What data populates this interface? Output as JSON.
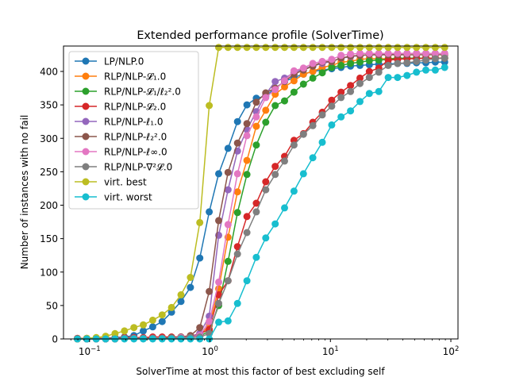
{
  "chart_data": {
    "type": "line",
    "title": "Extended performance profile (SolverTime)",
    "xlabel": "SolverTime at most this factor of best excluding self",
    "ylabel": "Number of instances with no fail",
    "xscale": "log",
    "xlim": [
      0.0608,
      114.6
    ],
    "ylim": [
      0,
      438
    ],
    "x_ticks": [
      {
        "value": 0.1,
        "base": "10",
        "exp": "−1"
      },
      {
        "value": 1,
        "base": "10",
        "exp": "0"
      },
      {
        "value": 10,
        "base": "10",
        "exp": "1"
      },
      {
        "value": 100,
        "base": "10",
        "exp": "2"
      }
    ],
    "y_ticks": [
      0,
      50,
      100,
      150,
      200,
      250,
      300,
      350,
      400
    ],
    "grid": false,
    "legend_position": "upper-left",
    "x_log_start": -1.101,
    "x_log_step": 0.0782,
    "n_points": 40,
    "series": [
      {
        "name": "LP/NLP.0",
        "color": "#1f77b4",
        "values": [
          0,
          0,
          1,
          1,
          2,
          3,
          5,
          12,
          18,
          26,
          40,
          56,
          77,
          121,
          190,
          247,
          285,
          325,
          350,
          360,
          363,
          375,
          385,
          391,
          396,
          400,
          402,
          404,
          406,
          408,
          409,
          410,
          411,
          411,
          412,
          412,
          413,
          413,
          414,
          414
        ]
      },
      {
        "name": "RLP/NLP-𝓛₁.0",
        "color": "#ff7f0e",
        "values": [
          0,
          0,
          0,
          0,
          0,
          1,
          1,
          1,
          1,
          1,
          1,
          2,
          3,
          6,
          20,
          75,
          152,
          220,
          267,
          318,
          342,
          366,
          377,
          386,
          396,
          400,
          406,
          409,
          414,
          415,
          418,
          419,
          419,
          419,
          420,
          420,
          420,
          420,
          420,
          420
        ]
      },
      {
        "name": "RLP/NLP-𝓛₁/ℓ₂².0",
        "color": "#2ca02c",
        "values": [
          0,
          0,
          0,
          0,
          0,
          1,
          1,
          1,
          1,
          1,
          1,
          2,
          2,
          4,
          12,
          50,
          116,
          189,
          246,
          290,
          324,
          349,
          356,
          369,
          381,
          390,
          398,
          406,
          409,
          412,
          414,
          416,
          417,
          418,
          420,
          420,
          420,
          420,
          420,
          420
        ]
      },
      {
        "name": "RLP/NLP-𝓛₂.0",
        "color": "#d62728",
        "values": [
          1,
          1,
          1,
          1,
          1,
          2,
          2,
          2,
          3,
          3,
          3,
          3,
          4,
          8,
          14,
          66,
          87,
          138,
          183,
          203,
          235,
          258,
          273,
          297,
          307,
          324,
          339,
          357,
          369,
          379,
          390,
          400,
          405,
          417,
          418,
          419,
          419,
          420,
          420,
          420
        ]
      },
      {
        "name": "RLP/NLP-ℓ₁.0",
        "color": "#9467bd",
        "values": [
          0,
          0,
          0,
          0,
          0,
          1,
          1,
          1,
          1,
          1,
          1,
          2,
          3,
          8,
          34,
          155,
          223,
          281,
          313,
          340,
          366,
          385,
          390,
          398,
          404,
          408,
          412,
          415,
          420,
          422,
          424,
          425,
          425,
          426,
          426,
          427,
          427,
          427,
          427,
          427
        ]
      },
      {
        "name": "RLP/NLP-ℓ₂².0",
        "color": "#8c564b",
        "values": [
          0,
          0,
          0,
          0,
          0,
          1,
          1,
          1,
          1,
          1,
          2,
          3,
          5,
          17,
          71,
          177,
          249,
          293,
          322,
          354,
          368,
          375,
          385,
          396,
          402,
          408,
          414,
          415,
          420,
          423,
          424,
          425,
          425,
          425,
          425,
          425,
          425,
          425,
          425,
          425
        ]
      },
      {
        "name": "RLP/NLP-ℓ∞.0",
        "color": "#e377c2",
        "values": [
          0,
          0,
          0,
          0,
          0,
          1,
          1,
          1,
          1,
          1,
          1,
          2,
          2,
          5,
          26,
          85,
          171,
          247,
          304,
          332,
          361,
          373,
          386,
          401,
          405,
          412,
          415,
          418,
          424,
          426,
          427,
          427,
          427,
          427,
          427,
          427,
          427,
          427,
          427,
          427
        ]
      },
      {
        "name": "RLP/NLP-∇²𝓛.0",
        "color": "#7f7f7f",
        "values": [
          0,
          0,
          0,
          0,
          0,
          1,
          1,
          1,
          1,
          1,
          1,
          1,
          2,
          3,
          8,
          53,
          87,
          127,
          159,
          190,
          223,
          246,
          266,
          290,
          306,
          319,
          335,
          348,
          361,
          370,
          382,
          391,
          399,
          409,
          412,
          413,
          415,
          417,
          419,
          420
        ]
      },
      {
        "name": "virt. best",
        "color": "#bcbd22",
        "values": [
          0,
          1,
          2,
          4,
          8,
          12,
          17,
          21,
          28,
          36,
          47,
          66,
          92,
          174,
          349,
          436,
          436,
          436,
          436,
          436,
          436,
          436,
          436,
          436,
          436,
          436,
          436,
          436,
          436,
          436,
          436,
          436,
          436,
          436,
          436,
          436,
          436,
          436,
          436,
          436
        ]
      },
      {
        "name": "virt. worst",
        "color": "#17becf",
        "values": [
          0,
          0,
          0,
          0,
          0,
          0,
          0,
          0,
          0,
          0,
          0,
          0,
          0,
          0,
          0,
          25,
          27,
          53,
          87,
          122,
          151,
          172,
          196,
          221,
          247,
          271,
          294,
          320,
          332,
          341,
          355,
          367,
          370,
          391,
          391,
          394,
          399,
          402,
          402,
          406
        ]
      }
    ]
  }
}
